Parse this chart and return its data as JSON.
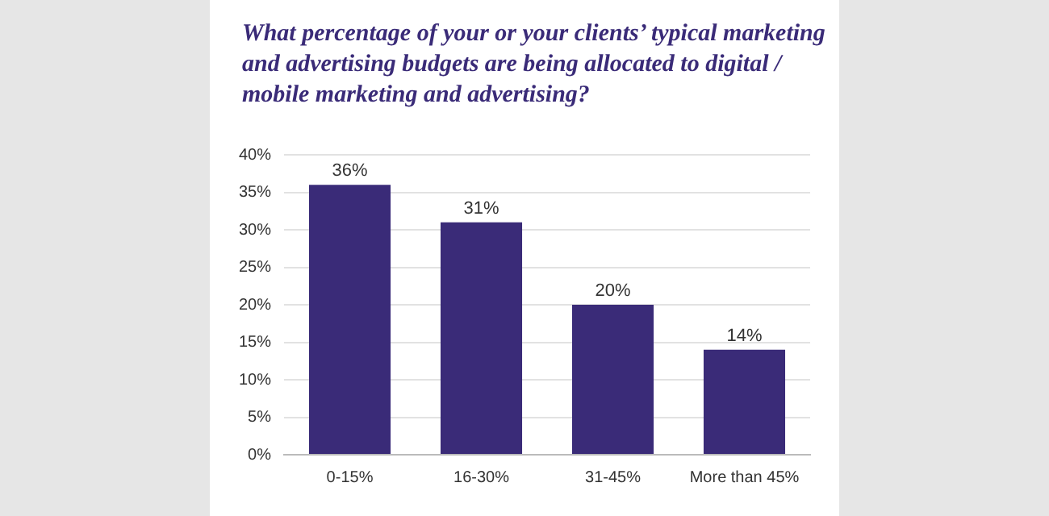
{
  "chart_data": {
    "type": "bar",
    "title": "What percentage of your or your clients’ typical marketing and advertising budgets are being allocated to digital / mobile marketing and advertising?",
    "categories": [
      "0-15%",
      "16-30%",
      "31-45%",
      "More than 45%"
    ],
    "values": [
      36,
      31,
      20,
      14
    ],
    "value_labels": [
      "36%",
      "31%",
      "20%",
      "14%"
    ],
    "color": "#3a2b78",
    "ylim": [
      0,
      40
    ],
    "yticks": [
      {
        "value": 0,
        "label": "0%"
      },
      {
        "value": 5,
        "label": "5%"
      },
      {
        "value": 10,
        "label": "10%"
      },
      {
        "value": 15,
        "label": "15%"
      },
      {
        "value": 20,
        "label": "20%"
      },
      {
        "value": 25,
        "label": "25%"
      },
      {
        "value": 30,
        "label": "30%"
      },
      {
        "value": 35,
        "label": "35%"
      },
      {
        "value": 40,
        "label": "40%"
      }
    ],
    "grid": "y",
    "legend": false
  }
}
